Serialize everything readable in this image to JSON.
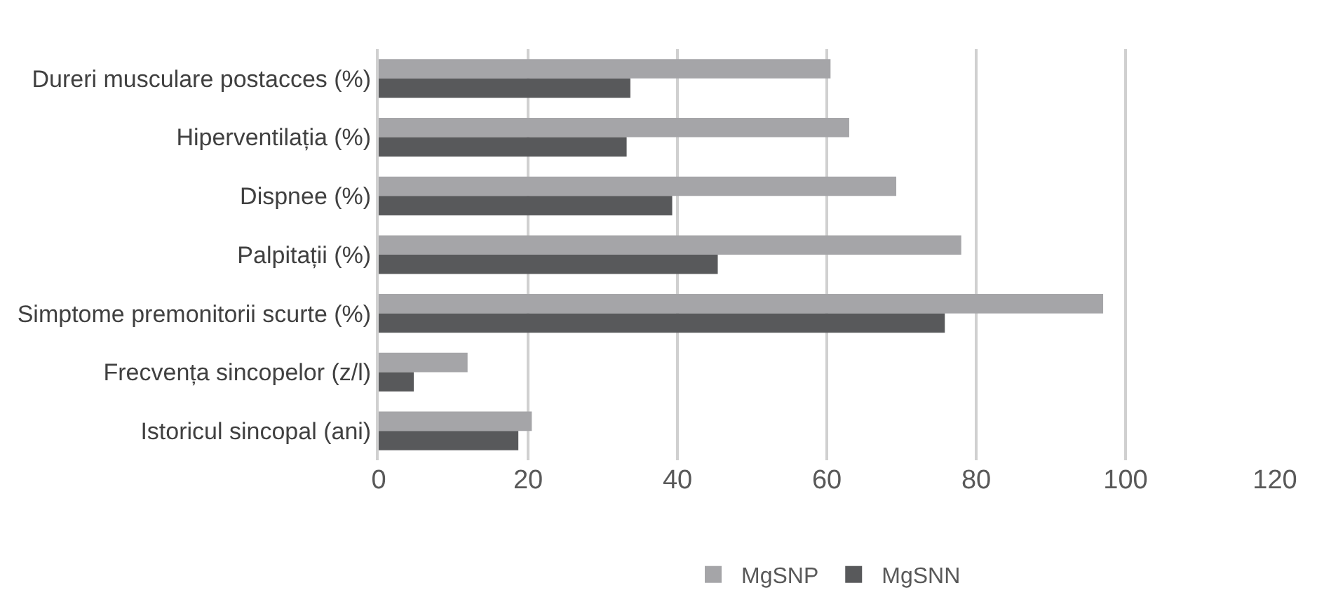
{
  "chart_data": {
    "type": "bar",
    "orientation": "horizontal",
    "categories": [
      "Dureri musculare postacces (%)",
      "Hiperventilația (%)",
      "Dispnee (%)",
      "Palpitații (%)",
      "Simptome premonitorii scurte (%)",
      "Frecvența sincopelor (z/l)",
      "Istoricul sincopal (ani)"
    ],
    "series": [
      {
        "name": "MgSNP",
        "color": "#a5a5a8",
        "values": [
          60.5,
          63,
          69.3,
          78,
          97,
          11.9,
          20.5
        ]
      },
      {
        "name": "MgSNN",
        "color": "#58595b",
        "values": [
          33.7,
          33.2,
          39.3,
          45.4,
          75.8,
          4.7,
          18.7
        ]
      }
    ],
    "xlim": [
      0,
      120
    ],
    "xticks": [
      0,
      20,
      40,
      60,
      80,
      100,
      120
    ],
    "grid": "x",
    "legend": "bottom"
  }
}
